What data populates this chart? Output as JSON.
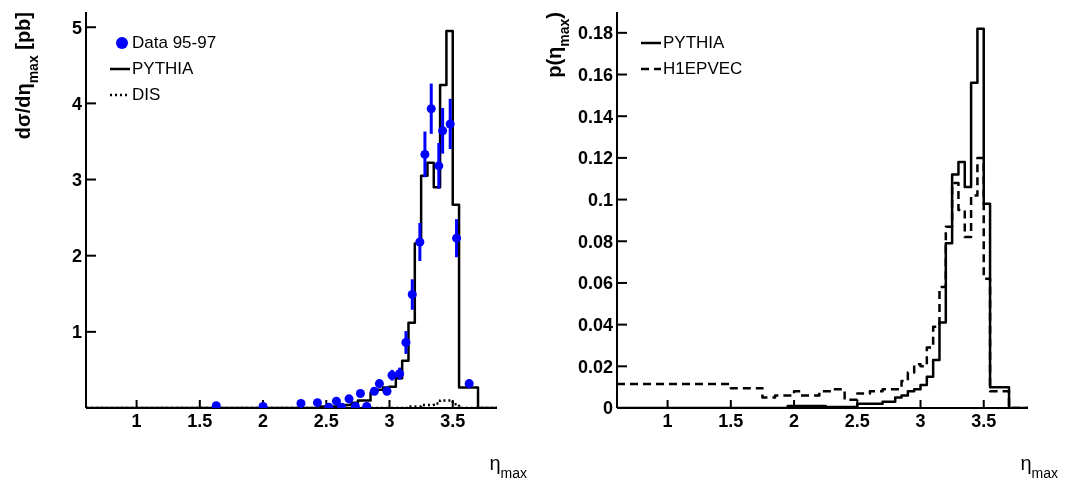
{
  "chart_data": [
    {
      "type": "step",
      "xlabel": "η$_{max}$",
      "ylabel": "dσ/dη$_{max}$ [pb]",
      "xlim": [
        0.6,
        3.85
      ],
      "ylim": [
        0,
        5.2
      ],
      "xticks": [
        1,
        1.5,
        2,
        2.5,
        3,
        3.5
      ],
      "yticks": [
        1,
        2,
        3,
        4,
        5
      ],
      "legend": "top left",
      "series": [
        {
          "name": "Data 95-97",
          "type": "scatter",
          "color": "#0000ff",
          "marker": "circle",
          "x": [
            1.63,
            2.0,
            2.3,
            2.43,
            2.52,
            2.58,
            2.62,
            2.68,
            2.73,
            2.77,
            2.82,
            2.88,
            2.92,
            2.98,
            3.02,
            3.08,
            3.13,
            3.18,
            3.24,
            3.28,
            3.33,
            3.39,
            3.42,
            3.48,
            3.53,
            3.63
          ],
          "values": [
            0.03,
            0.02,
            0.06,
            0.07,
            0.01,
            0.09,
            0.01,
            0.12,
            0.02,
            0.19,
            0.02,
            0.22,
            0.32,
            0.22,
            0.43,
            0.45,
            0.86,
            1.49,
            2.18,
            3.33,
            3.93,
            3.18,
            3.64,
            3.73,
            2.23,
            0.32
          ],
          "errors": [
            null,
            null,
            null,
            null,
            null,
            null,
            null,
            null,
            null,
            null,
            null,
            0.05,
            0.05,
            0.05,
            0.07,
            0.08,
            0.15,
            0.2,
            0.25,
            0.3,
            0.33,
            0.3,
            0.3,
            0.33,
            0.25,
            0.05
          ]
        },
        {
          "name": "PYTHIA",
          "type": "step",
          "color": "#000000",
          "line_style": "solid",
          "x": [
            0.6,
            2.45,
            2.6,
            2.7,
            2.75,
            2.85,
            2.9,
            2.95,
            3.0,
            3.05,
            3.1,
            3.15,
            3.2,
            3.25,
            3.3,
            3.35,
            3.4,
            3.45,
            3.5,
            3.55,
            3.7,
            3.85
          ],
          "values": [
            0,
            0.02,
            0.04,
            0.07,
            0.1,
            0.2,
            0.24,
            0.27,
            0.28,
            0.39,
            0.62,
            1.12,
            2.16,
            3.05,
            3.22,
            2.9,
            4.24,
            4.95,
            2.67,
            0.27,
            0,
            0
          ]
        },
        {
          "name": "DIS",
          "type": "step",
          "color": "#000000",
          "line_style": "dotted",
          "x": [
            0.6,
            3.15,
            3.25,
            3.35,
            3.4,
            3.5,
            3.55,
            3.85
          ],
          "values": [
            0,
            0.02,
            0.04,
            0.06,
            0.1,
            0.05,
            0,
            0
          ]
        }
      ]
    },
    {
      "type": "step",
      "xlabel": "η$_{max}$",
      "ylabel": "p(η$_{max}$)",
      "xlim": [
        0.6,
        3.85
      ],
      "ylim": [
        0,
        0.19
      ],
      "xticks": [
        1,
        1.5,
        2,
        2.5,
        3,
        3.5
      ],
      "yticks": [
        0,
        0.02,
        0.04,
        0.06,
        0.08,
        0.1,
        0.12,
        0.14,
        0.16,
        0.18
      ],
      "legend": "top left",
      "series": [
        {
          "name": "PYTHIA",
          "type": "step",
          "color": "#000000",
          "line_style": "solid",
          "x": [
            0.6,
            1.95,
            2.25,
            2.5,
            2.7,
            2.8,
            2.85,
            2.9,
            2.95,
            3.0,
            3.05,
            3.1,
            3.15,
            3.2,
            3.25,
            3.3,
            3.35,
            3.4,
            3.45,
            3.5,
            3.55,
            3.7,
            3.85
          ],
          "values": [
            0,
            0.001,
            0.0005,
            0.002,
            0.003,
            0.005,
            0.006,
            0.008,
            0.009,
            0.011,
            0.015,
            0.023,
            0.041,
            0.079,
            0.112,
            0.118,
            0.106,
            0.156,
            0.182,
            0.098,
            0.01,
            0,
            0
          ]
        },
        {
          "name": "H1EPVEC",
          "type": "step",
          "color": "#000000",
          "line_style": "dashed",
          "x": [
            0.6,
            1.5,
            1.75,
            1.85,
            2.0,
            2.05,
            2.2,
            2.3,
            2.4,
            2.5,
            2.6,
            2.7,
            2.85,
            2.9,
            2.95,
            3.0,
            3.05,
            3.1,
            3.15,
            3.2,
            3.25,
            3.3,
            3.35,
            3.4,
            3.45,
            3.5,
            3.55,
            3.7,
            3.85
          ],
          "values": [
            0.0115,
            0.0095,
            0.005,
            0.006,
            0.008,
            0.006,
            0.008,
            0.009,
            0.004,
            0.007,
            0.008,
            0.009,
            0.013,
            0.017,
            0.021,
            0.02,
            0.029,
            0.039,
            0.058,
            0.087,
            0.108,
            0.095,
            0.082,
            0.102,
            0.12,
            0.062,
            0.008,
            0,
            0
          ]
        }
      ]
    }
  ]
}
